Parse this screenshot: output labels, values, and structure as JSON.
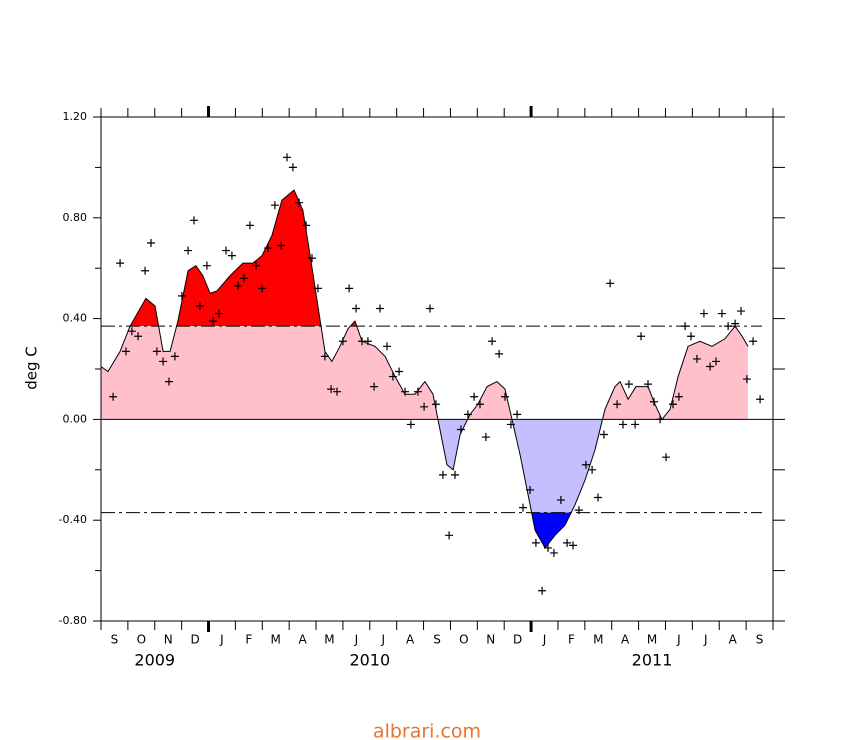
{
  "chart_data": {
    "type": "area",
    "y_label": "deg C",
    "footer": "albrari.com",
    "categories": [
      "S",
      "O",
      "N",
      "D",
      "J",
      "F",
      "M",
      "A",
      "M",
      "J",
      "J",
      "A",
      "S",
      "O",
      "N",
      "D",
      "J",
      "F",
      "M",
      "A",
      "M",
      "J",
      "J",
      "A",
      "S"
    ],
    "years": [
      "2009",
      "2010",
      "2011"
    ],
    "xlim": [
      0,
      25
    ],
    "xticks": [
      0,
      1,
      2,
      3,
      4,
      5,
      6,
      7,
      8,
      9,
      10,
      11,
      12,
      13,
      14,
      15,
      16,
      17,
      18,
      19,
      20,
      21,
      22,
      23,
      24,
      25
    ],
    "xmajor_ticks": [
      4,
      16
    ],
    "ylim": [
      -0.8,
      1.2
    ],
    "yticks": [
      {
        "value": -0.8,
        "label": "-0.80"
      },
      {
        "value": -0.4,
        "label": "-0.40"
      },
      {
        "value": 0,
        "label": "0.00"
      },
      {
        "value": 0.4,
        "label": "0.40"
      },
      {
        "value": 0.8,
        "label": "0.80"
      },
      {
        "value": 1.2,
        "label": "1.20"
      }
    ],
    "yminor_ticks": [
      -0.6,
      -0.2,
      0.2,
      0.6,
      1.0
    ],
    "thresholds": [
      0.37,
      -0.37
    ],
    "colors": {
      "strong_warm": "#ff0000",
      "warm": "#ffc0cb",
      "cool": "#c4c0ff",
      "strong_cool": "#0000ff"
    },
    "line": {
      "x": [
        0,
        0.26,
        0.71,
        1.08,
        1.67,
        2.01,
        2.31,
        2.57,
        2.86,
        3.24,
        3.53,
        3.79,
        4.06,
        4.32,
        4.8,
        5.28,
        5.65,
        5.99,
        6.36,
        6.73,
        7.18,
        7.51,
        7.78,
        8.04,
        8.33,
        8.59,
        8.89,
        9.19,
        9.45,
        9.71,
        10.19,
        10.57,
        10.94,
        11.31,
        11.68,
        12.05,
        12.35,
        12.61,
        12.87,
        13.1,
        13.36,
        13.73,
        14.02,
        14.36,
        14.73,
        15.03,
        15.29,
        15.59,
        15.89,
        16.15,
        16.52,
        16.89,
        17.26,
        17.63,
        18.01,
        18.38,
        18.75,
        19.12,
        19.31,
        19.61,
        19.9,
        20.35,
        20.61,
        20.87,
        21.17,
        21.47,
        21.84,
        22.28,
        22.73,
        23.21,
        23.59,
        23.85,
        24.07
      ],
      "values": [
        0.21,
        0.19,
        0.27,
        0.37,
        0.48,
        0.45,
        0.27,
        0.27,
        0.39,
        0.59,
        0.61,
        0.57,
        0.5,
        0.51,
        0.57,
        0.62,
        0.62,
        0.65,
        0.73,
        0.87,
        0.91,
        0.83,
        0.65,
        0.47,
        0.27,
        0.23,
        0.29,
        0.36,
        0.39,
        0.31,
        0.29,
        0.25,
        0.17,
        0.1,
        0.1,
        0.15,
        0.1,
        -0.04,
        -0.18,
        -0.2,
        -0.06,
        0.02,
        0.06,
        0.13,
        0.15,
        0.12,
        0,
        -0.14,
        -0.3,
        -0.44,
        -0.51,
        -0.46,
        -0.42,
        -0.34,
        -0.24,
        -0.12,
        0.04,
        0.13,
        0.15,
        0.08,
        0.13,
        0.13,
        0.06,
        0,
        0.04,
        0.17,
        0.29,
        0.31,
        0.29,
        0.32,
        0.37,
        0.33,
        0.29
      ]
    },
    "points": {
      "x": [
        0.45,
        0.71,
        0.93,
        1.15,
        1.38,
        1.64,
        1.86,
        2.08,
        2.31,
        2.53,
        2.75,
        3.01,
        3.24,
        3.46,
        3.68,
        3.94,
        4.17,
        4.39,
        4.65,
        4.87,
        5.1,
        5.32,
        5.54,
        5.77,
        5.99,
        6.21,
        6.47,
        6.7,
        6.92,
        7.14,
        7.37,
        7.63,
        7.85,
        8.07,
        8.33,
        8.56,
        8.78,
        9,
        9.23,
        9.49,
        9.71,
        9.93,
        10.16,
        10.38,
        10.64,
        10.86,
        11.09,
        11.31,
        11.53,
        11.79,
        12.02,
        12.24,
        12.46,
        12.72,
        12.95,
        13.17,
        13.39,
        13.65,
        13.88,
        14.1,
        14.32,
        14.55,
        14.81,
        15.03,
        15.25,
        15.48,
        15.7,
        15.96,
        16.18,
        16.41,
        16.63,
        16.85,
        17.11,
        17.34,
        17.56,
        17.78,
        18.04,
        18.27,
        18.49,
        18.71,
        18.94,
        19.2,
        19.42,
        19.64,
        19.87,
        20.09,
        20.35,
        20.57,
        20.8,
        21.02,
        21.28,
        21.5,
        21.73,
        21.95,
        22.17,
        22.43,
        22.66,
        22.88,
        23.1,
        23.33,
        23.59,
        23.81,
        24.03,
        24.26,
        24.52
      ],
      "values": [
        0.09,
        0.62,
        0.27,
        0.35,
        0.33,
        0.59,
        0.7,
        0.27,
        0.23,
        0.15,
        0.25,
        0.49,
        0.67,
        0.79,
        0.45,
        0.61,
        0.39,
        0.42,
        0.67,
        0.65,
        0.53,
        0.56,
        0.77,
        0.61,
        0.52,
        0.68,
        0.85,
        0.69,
        1.04,
        1,
        0.86,
        0.77,
        0.64,
        0.52,
        0.25,
        0.12,
        0.11,
        0.31,
        0.52,
        0.44,
        0.31,
        0.31,
        0.13,
        0.44,
        0.29,
        0.17,
        0.19,
        0.11,
        -0.02,
        0.11,
        0.05,
        0.44,
        0.06,
        -0.22,
        -0.46,
        -0.22,
        -0.04,
        0.02,
        0.09,
        0.06,
        -0.07,
        0.31,
        0.26,
        0.09,
        -0.02,
        0.02,
        -0.35,
        -0.28,
        -0.49,
        -0.68,
        -0.51,
        -0.53,
        -0.32,
        -0.49,
        -0.5,
        -0.36,
        -0.18,
        -0.2,
        -0.31,
        -0.06,
        0.54,
        0.06,
        -0.02,
        0.14,
        -0.02,
        0.33,
        0.14,
        0.07,
        0,
        -0.15,
        0.06,
        0.09,
        0.37,
        0.33,
        0.24,
        0.42,
        0.21,
        0.23,
        0.42,
        0.37,
        0.38,
        0.43,
        0.16,
        0.31,
        0.08
      ]
    }
  }
}
